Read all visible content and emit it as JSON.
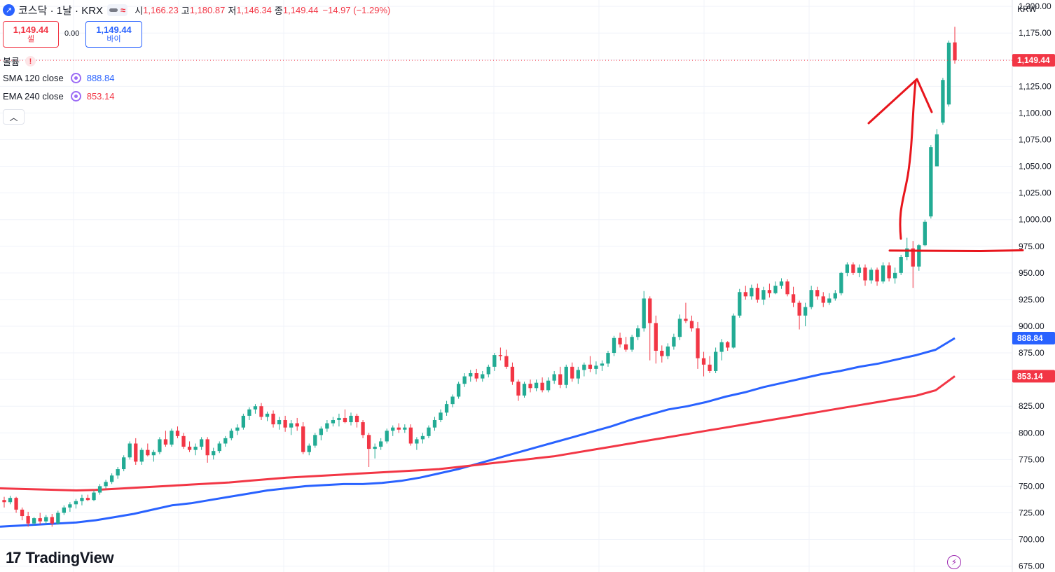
{
  "header": {
    "symbol": "코스닥 · 1날 · KRX",
    "open_label": "시",
    "open": "1,166.23",
    "high_label": "고",
    "high": "1,180.87",
    "low_label": "저",
    "low": "1,146.34",
    "close_label": "종",
    "close": "1,149.44",
    "change": "−14.97 (−1.29%)"
  },
  "trade": {
    "sell_price": "1,149.44",
    "sell_label": "셀",
    "spread": "0.00",
    "buy_price": "1,149.44",
    "buy_label": "바이"
  },
  "indicators": {
    "volume_label": "볼륨",
    "sma_label": "SMA 120 close",
    "sma_value": "888.84",
    "ema_label": "EMA 240 close",
    "ema_value": "853.14"
  },
  "axis": {
    "currency": "KRW"
  },
  "brand": {
    "name": "TradingView"
  },
  "colors": {
    "up": "#22ab94",
    "down": "#f23645",
    "sma": "#2962ff",
    "ema": "#f23645",
    "grid": "#f0f3fa",
    "annotation": "#e8151c"
  },
  "chart_data": {
    "type": "candlestick",
    "y_axis": {
      "ylim": [
        669.5,
        1206
      ],
      "ticks": [
        "675.00",
        "700.00",
        "725.00",
        "750.00",
        "775.00",
        "800.00",
        "825.00",
        "850.00",
        "875.00",
        "900.00",
        "925.00",
        "950.00",
        "975.00",
        "1,000.00",
        "1,025.00",
        "1,050.00",
        "1,075.00",
        "1,100.00",
        "1,125.00",
        "1,150.00",
        "1,175.00",
        "1,200.00"
      ],
      "tick_values": [
        675,
        700,
        725,
        750,
        775,
        800,
        825,
        850,
        875,
        900,
        925,
        950,
        975,
        1000,
        1025,
        1050,
        1075,
        1100,
        1125,
        1150,
        1175,
        1200
      ]
    },
    "last_price": {
      "value": 1149.44,
      "label": "1,149.44"
    },
    "series": [
      {
        "name": "SMA 120 close",
        "value": 888.84,
        "label": "888.84",
        "points": [
          712,
          713,
          714,
          715,
          716,
          718,
          721,
          724,
          728,
          732,
          734,
          737,
          740,
          743,
          746,
          748,
          750,
          751,
          752,
          752,
          753,
          755,
          758,
          762,
          766,
          771,
          776,
          781,
          786,
          791,
          796,
          801,
          806,
          812,
          817,
          822,
          825,
          829,
          834,
          838,
          843,
          847,
          851,
          855,
          858,
          862,
          865,
          869,
          873,
          878,
          888.84
        ]
      },
      {
        "name": "EMA 240 close",
        "value": 853.14,
        "label": "853.14",
        "points": [
          748,
          747.5,
          747,
          746.5,
          746,
          746.5,
          747.5,
          748.5,
          749.5,
          750.5,
          751.5,
          752.5,
          753.5,
          755,
          756.5,
          758,
          759,
          760,
          761,
          762,
          763,
          764,
          765,
          766,
          768,
          770,
          772,
          774,
          776,
          778,
          781,
          784,
          787,
          790,
          793,
          796,
          799,
          802,
          805,
          808,
          811,
          814,
          817,
          820,
          823,
          826,
          829,
          832,
          835,
          840,
          853.14
        ]
      }
    ],
    "candles": [
      [
        737,
        740,
        730,
        735
      ],
      [
        735,
        741,
        733,
        739
      ],
      [
        739,
        740,
        725,
        728
      ],
      [
        728,
        730,
        718,
        722
      ],
      [
        722,
        726,
        712,
        715
      ],
      [
        715,
        721,
        713,
        720
      ],
      [
        720,
        725,
        714,
        717
      ],
      [
        717,
        723,
        714,
        721
      ],
      [
        721,
        724,
        712,
        715
      ],
      [
        715,
        727,
        714,
        725
      ],
      [
        725,
        732,
        723,
        730
      ],
      [
        730,
        735,
        726,
        733
      ],
      [
        733,
        738,
        729,
        736
      ],
      [
        736,
        742,
        732,
        739
      ],
      [
        739,
        742,
        736,
        737
      ],
      [
        737,
        746,
        736,
        744
      ],
      [
        744,
        752,
        742,
        750
      ],
      [
        750,
        756,
        748,
        754
      ],
      [
        754,
        762,
        752,
        760
      ],
      [
        760,
        768,
        757,
        766
      ],
      [
        766,
        779,
        764,
        777
      ],
      [
        777,
        792,
        775,
        790
      ],
      [
        790,
        795,
        770,
        773
      ],
      [
        773,
        786,
        770,
        784
      ],
      [
        784,
        790,
        778,
        779
      ],
      [
        779,
        784,
        773,
        782
      ],
      [
        782,
        796,
        780,
        794
      ],
      [
        794,
        802,
        787,
        789
      ],
      [
        789,
        804,
        787,
        802
      ],
      [
        802,
        806,
        795,
        797
      ],
      [
        797,
        800,
        785,
        787
      ],
      [
        787,
        792,
        782,
        784
      ],
      [
        784,
        790,
        779,
        787
      ],
      [
        787,
        796,
        784,
        794
      ],
      [
        794,
        796,
        772,
        779
      ],
      [
        779,
        786,
        775,
        783
      ],
      [
        783,
        792,
        781,
        790
      ],
      [
        790,
        797,
        787,
        795
      ],
      [
        795,
        804,
        793,
        802
      ],
      [
        802,
        808,
        798,
        805
      ],
      [
        805,
        818,
        803,
        816
      ],
      [
        816,
        824,
        812,
        822
      ],
      [
        822,
        827,
        818,
        825
      ],
      [
        825,
        828,
        812,
        815
      ],
      [
        815,
        820,
        811,
        818
      ],
      [
        818,
        821,
        805,
        808
      ],
      [
        808,
        815,
        803,
        812
      ],
      [
        812,
        816,
        801,
        805
      ],
      [
        805,
        812,
        798,
        809
      ],
      [
        809,
        814,
        802,
        806
      ],
      [
        806,
        810,
        780,
        782
      ],
      [
        782,
        790,
        779,
        788
      ],
      [
        788,
        800,
        786,
        798
      ],
      [
        798,
        806,
        793,
        804
      ],
      [
        804,
        812,
        801,
        809
      ],
      [
        809,
        815,
        806,
        812
      ],
      [
        812,
        818,
        806,
        814
      ],
      [
        814,
        822,
        809,
        810
      ],
      [
        810,
        819,
        807,
        816
      ],
      [
        816,
        818,
        805,
        810
      ],
      [
        810,
        812,
        795,
        798
      ],
      [
        798,
        800,
        768,
        785
      ],
      [
        785,
        790,
        776,
        787
      ],
      [
        787,
        795,
        784,
        792
      ],
      [
        792,
        804,
        790,
        802
      ],
      [
        802,
        807,
        797,
        805
      ],
      [
        805,
        809,
        800,
        803
      ],
      [
        803,
        808,
        800,
        805
      ],
      [
        805,
        808,
        788,
        790
      ],
      [
        790,
        796,
        784,
        794
      ],
      [
        794,
        800,
        790,
        797
      ],
      [
        797,
        807,
        795,
        805
      ],
      [
        805,
        815,
        802,
        812
      ],
      [
        812,
        822,
        810,
        819
      ],
      [
        819,
        830,
        816,
        827
      ],
      [
        827,
        836,
        824,
        834
      ],
      [
        834,
        848,
        832,
        846
      ],
      [
        846,
        856,
        843,
        853
      ],
      [
        853,
        859,
        848,
        856
      ],
      [
        856,
        860,
        848,
        851
      ],
      [
        851,
        858,
        848,
        855
      ],
      [
        855,
        864,
        852,
        862
      ],
      [
        862,
        875,
        858,
        873
      ],
      [
        873,
        880,
        868,
        872
      ],
      [
        872,
        878,
        860,
        862
      ],
      [
        862,
        866,
        845,
        848
      ],
      [
        848,
        850,
        830,
        835
      ],
      [
        835,
        848,
        833,
        846
      ],
      [
        846,
        850,
        838,
        842
      ],
      [
        842,
        850,
        839,
        847
      ],
      [
        847,
        852,
        838,
        840
      ],
      [
        840,
        852,
        838,
        849
      ],
      [
        849,
        858,
        846,
        855
      ],
      [
        855,
        862,
        842,
        845
      ],
      [
        845,
        864,
        842,
        862
      ],
      [
        862,
        866,
        848,
        851
      ],
      [
        851,
        862,
        846,
        859
      ],
      [
        859,
        866,
        853,
        864
      ],
      [
        864,
        872,
        857,
        860
      ],
      [
        860,
        867,
        855,
        863
      ],
      [
        863,
        868,
        858,
        865
      ],
      [
        865,
        877,
        862,
        875
      ],
      [
        875,
        891,
        872,
        889
      ],
      [
        889,
        894,
        880,
        883
      ],
      [
        883,
        890,
        876,
        878
      ],
      [
        878,
        892,
        876,
        890
      ],
      [
        890,
        901,
        887,
        898
      ],
      [
        898,
        933,
        895,
        926
      ],
      [
        926,
        928,
        868,
        903
      ],
      [
        903,
        910,
        865,
        877
      ],
      [
        877,
        882,
        866,
        872
      ],
      [
        872,
        884,
        869,
        881
      ],
      [
        881,
        893,
        878,
        890
      ],
      [
        890,
        911,
        887,
        907
      ],
      [
        907,
        922,
        903,
        905
      ],
      [
        905,
        910,
        895,
        898
      ],
      [
        898,
        904,
        860,
        870
      ],
      [
        870,
        876,
        853,
        864
      ],
      [
        864,
        872,
        856,
        858
      ],
      [
        858,
        880,
        856,
        876
      ],
      [
        876,
        888,
        868,
        885
      ],
      [
        885,
        886,
        877,
        880
      ],
      [
        880,
        912,
        879,
        910
      ],
      [
        910,
        935,
        908,
        932
      ],
      [
        932,
        938,
        925,
        928
      ],
      [
        928,
        939,
        925,
        936
      ],
      [
        936,
        940,
        922,
        925
      ],
      [
        925,
        937,
        920,
        934
      ],
      [
        934,
        940,
        927,
        931
      ],
      [
        931,
        942,
        930,
        938
      ],
      [
        938,
        945,
        935,
        942
      ],
      [
        942,
        944,
        928,
        930
      ],
      [
        930,
        937,
        918,
        922
      ],
      [
        922,
        924,
        897,
        910
      ],
      [
        910,
        922,
        900,
        918
      ],
      [
        918,
        938,
        916,
        934
      ],
      [
        934,
        937,
        925,
        928
      ],
      [
        928,
        932,
        918,
        922
      ],
      [
        922,
        931,
        920,
        926
      ],
      [
        926,
        934,
        924,
        931
      ],
      [
        931,
        951,
        929,
        950
      ],
      [
        950,
        960,
        947,
        958
      ],
      [
        958,
        960,
        948,
        950
      ],
      [
        950,
        958,
        946,
        955
      ],
      [
        955,
        958,
        938,
        943
      ],
      [
        943,
        955,
        940,
        953
      ],
      [
        953,
        955,
        938,
        942
      ],
      [
        942,
        960,
        940,
        957
      ],
      [
        957,
        960,
        942,
        945
      ],
      [
        945,
        955,
        940,
        950
      ],
      [
        950,
        967,
        948,
        965
      ],
      [
        965,
        983,
        962,
        973
      ],
      [
        973,
        980,
        936,
        956
      ],
      [
        956,
        977,
        952,
        976
      ],
      [
        976,
        1000,
        975,
        998
      ],
      [
        1003,
        1070,
        1001,
        1068
      ],
      [
        1050,
        1085,
        1050,
        1080
      ],
      [
        1091,
        1133,
        1089,
        1131
      ],
      [
        1108,
        1168,
        1106,
        1166
      ],
      [
        1166.23,
        1180.87,
        1146.34,
        1149.44
      ]
    ]
  }
}
